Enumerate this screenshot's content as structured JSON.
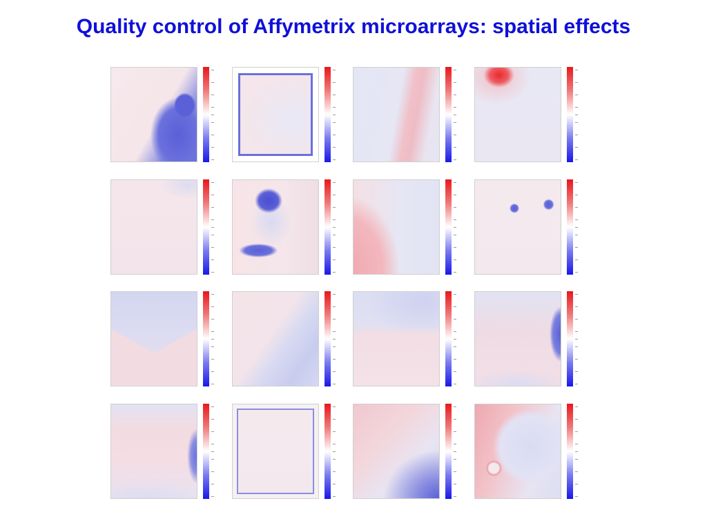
{
  "title": "Quality control of Affymetrix microarrays: spatial effects",
  "colormap": {
    "high_color": "#e8181c",
    "mid_color": "#ffffff",
    "low_color": "#1818e8"
  },
  "panels": [
    {
      "pattern": "blue-region-lower-right"
    },
    {
      "pattern": "blue-rectangular-border"
    },
    {
      "pattern": "red-vertical-streak"
    },
    {
      "pattern": "red-blob-top-left"
    },
    {
      "pattern": "faint-uniform-speckle"
    },
    {
      "pattern": "blue-blobs-upper-and-lower-left"
    },
    {
      "pattern": "red-left-blue-right-gradient"
    },
    {
      "pattern": "two-small-blue-spots"
    },
    {
      "pattern": "blue-top-red-triangle-bottom"
    },
    {
      "pattern": "blue-diagonal-lower-right"
    },
    {
      "pattern": "blue-top-band-red-bottom"
    },
    {
      "pattern": "blue-edge-right"
    },
    {
      "pattern": "blue-right-edge-and-corner"
    },
    {
      "pattern": "blue-rectangular-border-thin"
    },
    {
      "pattern": "blue-lower-right-red-upper-left"
    },
    {
      "pattern": "red-left-blue-circle-right"
    }
  ]
}
